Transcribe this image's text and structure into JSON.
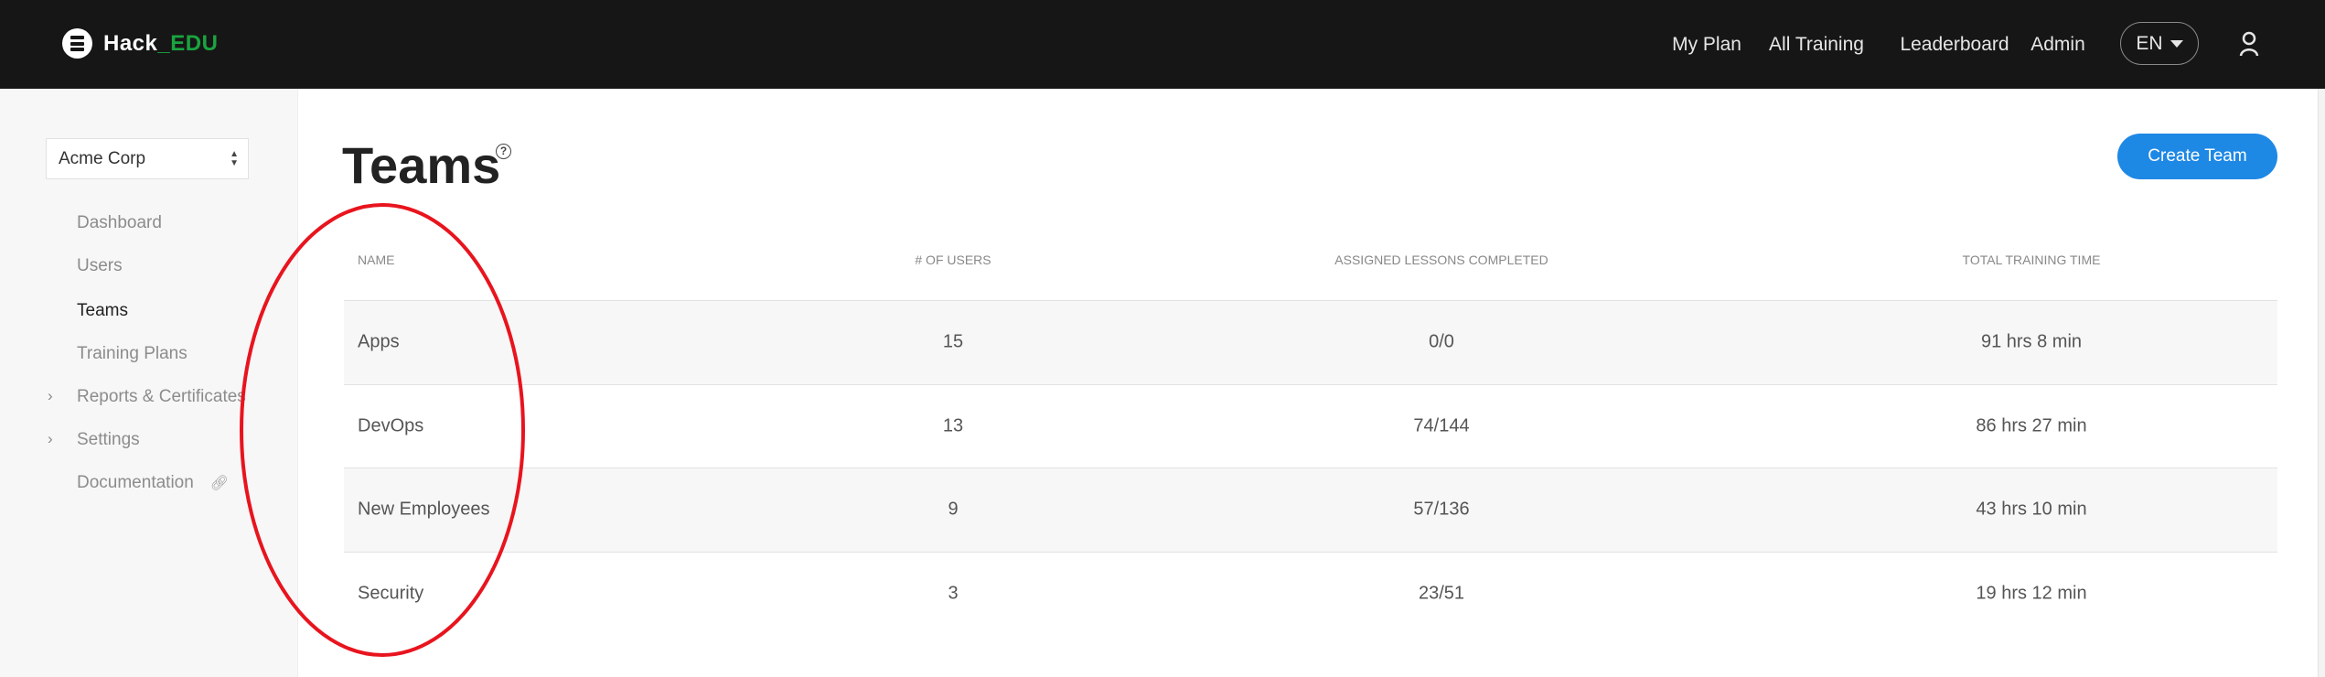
{
  "header": {
    "logo": {
      "text": "Hack",
      "accent": "_EDU",
      "accent_color": "#1aa33f"
    },
    "nav": [
      {
        "label": "My Plan"
      },
      {
        "label": "All Training"
      },
      {
        "label": "Leaderboard"
      },
      {
        "label": "Admin"
      }
    ],
    "language": "EN",
    "user_icon": "user-icon"
  },
  "sidebar": {
    "org_select": "Acme Corp",
    "items": [
      {
        "label": "Dashboard",
        "active": false
      },
      {
        "label": "Users",
        "active": false
      },
      {
        "label": "Teams",
        "active": true
      },
      {
        "label": "Training Plans",
        "active": false
      },
      {
        "label": "Reports & Certificates",
        "expandable": true
      },
      {
        "label": "Settings",
        "expandable": true
      },
      {
        "label": "Documentation",
        "external": true
      }
    ]
  },
  "main": {
    "title": "Teams",
    "help_icon": "?",
    "create_button": "Create Team",
    "accent_color": "#1e88e5",
    "table": {
      "columns": [
        "NAME",
        "# OF USERS",
        "ASSIGNED LESSONS COMPLETED",
        "TOTAL TRAINING TIME"
      ],
      "rows": [
        [
          "Apps",
          "15",
          "0/0",
          "91 hrs 8 min"
        ],
        [
          "DevOps",
          "13",
          "74/144",
          "86 hrs 27 min"
        ],
        [
          "New Employees",
          "9",
          "57/136",
          "43 hrs 10 min"
        ],
        [
          "Security",
          "3",
          "23/51",
          "19 hrs 12 min"
        ]
      ]
    }
  },
  "annotation": {
    "shape": "ellipse",
    "color": "#e8141e",
    "target": "team-name-column"
  }
}
